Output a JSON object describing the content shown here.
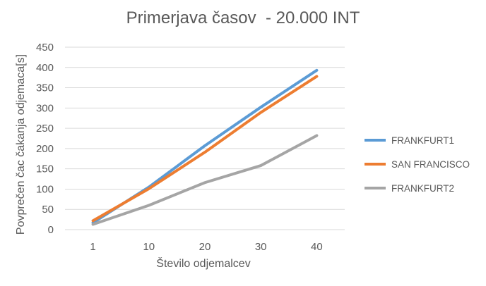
{
  "chart_data": {
    "type": "line",
    "title": "Primerjava časov  - 20.000 INT",
    "xlabel": "Število odjemalcev",
    "ylabel": "Povprečen čac čakanja odjemaca[s]",
    "categories": [
      "1",
      "10",
      "20",
      "30",
      "40"
    ],
    "ylim": [
      0,
      450
    ],
    "yticks": [
      0,
      50,
      100,
      150,
      200,
      250,
      300,
      350,
      400,
      450
    ],
    "grid": true,
    "legend_position": "right",
    "series": [
      {
        "name": "FRANKFURT1",
        "color": "#5B9BD5",
        "values": [
          17,
          105,
          207,
          302,
          393
        ]
      },
      {
        "name": "SAN FRANCISCO",
        "color": "#ED7D31",
        "values": [
          22,
          101,
          191,
          289,
          378
        ]
      },
      {
        "name": "FRANKFURT2",
        "color": "#A5A5A5",
        "values": [
          13,
          60,
          116,
          158,
          232
        ]
      }
    ]
  }
}
